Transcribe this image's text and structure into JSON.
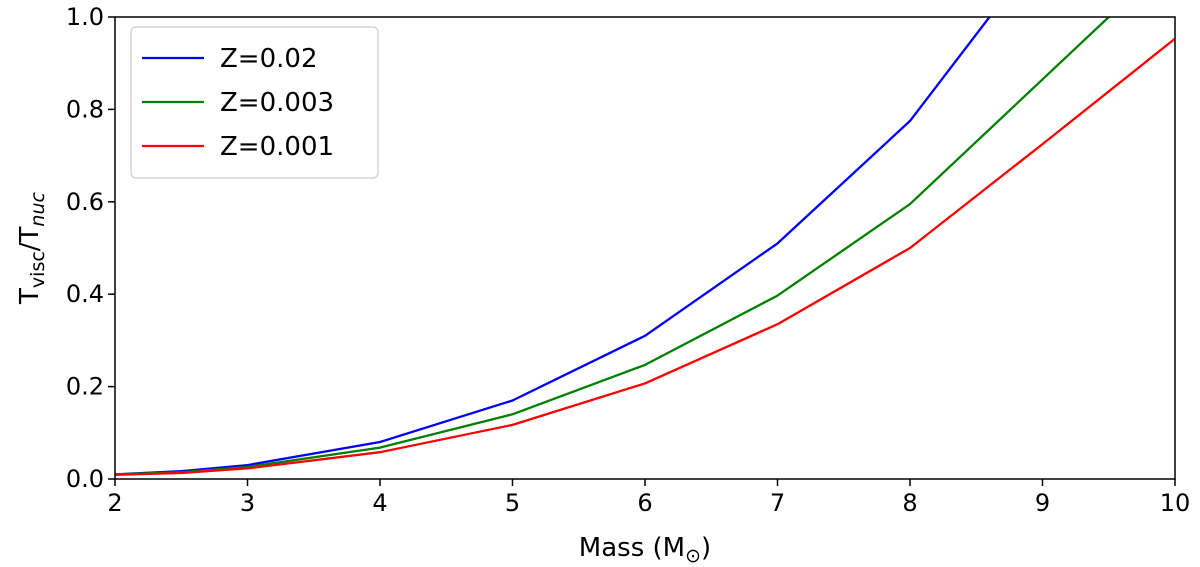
{
  "chart_data": {
    "type": "line",
    "title": "",
    "xlabel": {
      "main": "Mass (M",
      "sub": "⊙",
      "close": ")"
    },
    "ylabel": {
      "main": "T",
      "sub1": "visc",
      "mid": "/T",
      "sub2": "nuc"
    },
    "xlim": [
      2,
      10
    ],
    "ylim": [
      0,
      1.0
    ],
    "xticks": [
      2,
      3,
      4,
      5,
      6,
      7,
      8,
      9,
      10
    ],
    "yticks": [
      0.0,
      0.2,
      0.4,
      0.6,
      0.8,
      1.0
    ],
    "xtick_labels": [
      "2",
      "3",
      "4",
      "5",
      "6",
      "7",
      "8",
      "9",
      "10"
    ],
    "ytick_labels": [
      "0.0",
      "0.2",
      "0.4",
      "0.6",
      "0.8",
      "1.0"
    ],
    "grid": false,
    "legend_position": "top-left",
    "series": [
      {
        "name": "Z=0.02",
        "color": "#0000ff",
        "x": [
          2,
          2.5,
          3,
          4,
          5,
          6,
          7,
          8,
          8.6
        ],
        "y": [
          0.01,
          0.017,
          0.03,
          0.08,
          0.17,
          0.31,
          0.51,
          0.775,
          1.0
        ]
      },
      {
        "name": "Z=0.003",
        "color": "#008000",
        "x": [
          2,
          2.5,
          3,
          4,
          5,
          6,
          7,
          8,
          9.5
        ],
        "y": [
          0.01,
          0.015,
          0.026,
          0.068,
          0.14,
          0.247,
          0.397,
          0.595,
          1.0
        ]
      },
      {
        "name": "Z=0.001",
        "color": "#ff0000",
        "x": [
          2,
          2.5,
          3,
          4,
          5,
          6,
          7,
          8,
          9,
          10
        ],
        "y": [
          0.009,
          0.013,
          0.023,
          0.058,
          0.117,
          0.207,
          0.335,
          0.5,
          0.725,
          0.953
        ]
      }
    ]
  }
}
